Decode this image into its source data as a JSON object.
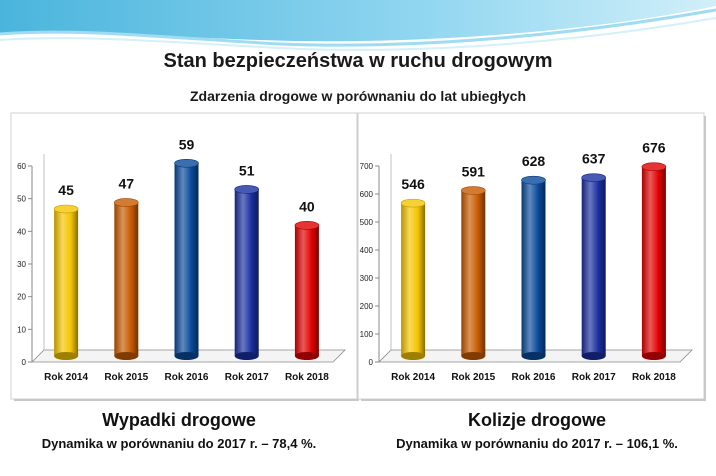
{
  "title": "Stan bezpieczeństwa w ruchu drogowym",
  "subtitle": "Zdarzenia drogowe w porównaniu do lat ubiegłych",
  "colors": [
    "#f5c400",
    "#c85a00",
    "#0a4a9a",
    "#1a2fa0",
    "#e00000"
  ],
  "chart_data": [
    {
      "type": "bar",
      "title": "Wypadki drogowe",
      "note": "Dynamika w porównaniu  do 2017 r. – 78,4 %.",
      "categories": [
        "Rok 2014",
        "Rok 2015",
        "Rok 2016",
        "Rok 2017",
        "Rok 2018"
      ],
      "values": [
        45,
        47,
        59,
        51,
        40
      ],
      "data_labels": [
        "45",
        "47",
        "59",
        "51",
        "40"
      ],
      "ylim": [
        0,
        60
      ],
      "yticks": [
        0,
        10,
        20,
        30,
        40,
        50,
        60
      ],
      "grid": false
    },
    {
      "type": "bar",
      "title": "Kolizje drogowe",
      "note": "Dynamika w porównaniu  do 2017 r. – 106,1 %.",
      "categories": [
        "Rok 2014",
        "Rok 2015",
        "Rok 2016",
        "Rok 2017",
        "Rok 2018"
      ],
      "values": [
        546,
        591,
        628,
        637,
        676
      ],
      "data_labels": [
        "546",
        "591",
        "628",
        "637",
        "676"
      ],
      "ylim": [
        0,
        700
      ],
      "yticks": [
        0,
        100,
        200,
        300,
        400,
        500,
        600,
        700
      ],
      "grid": false
    }
  ]
}
